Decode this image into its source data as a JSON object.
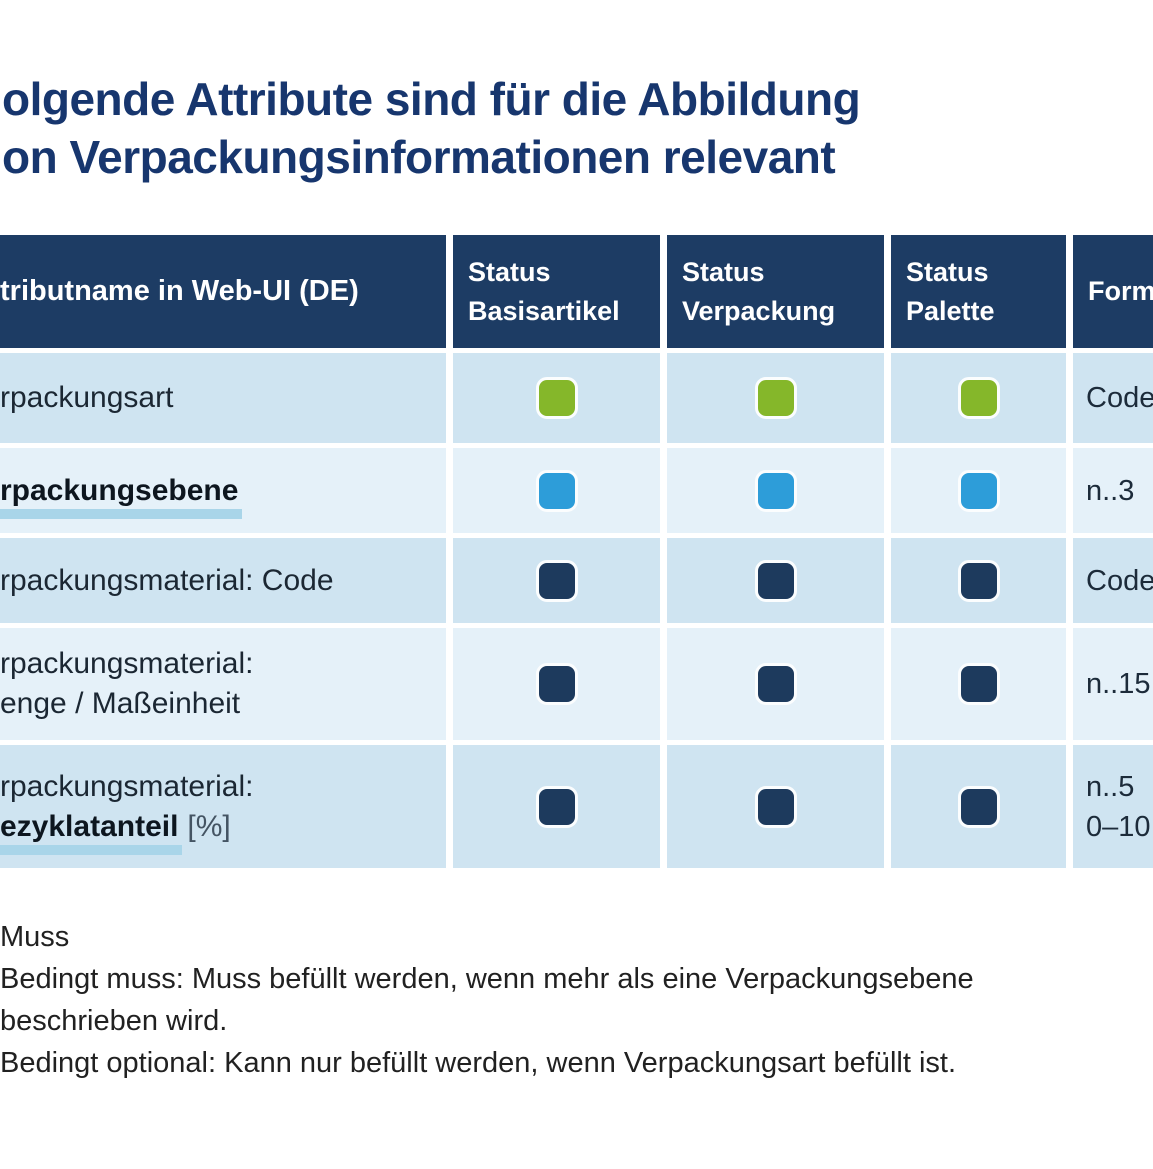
{
  "title": {
    "line1": "olgende Attribute sind für die Abbildung",
    "line2": "on Verpackungsinformationen relevant"
  },
  "table": {
    "headers": {
      "attribute_name": "tributname in Web-UI (DE)",
      "status_basisartikel": "Status Basisartikel",
      "status_verpackung": "Status Verpackung",
      "status_palette": "Status Palette",
      "format": "Form"
    },
    "rows": [
      {
        "name": "rpackungsart",
        "status": "muss",
        "format": "Code"
      },
      {
        "name": "rpackungsebene",
        "status": "bedingt-muss",
        "format": "n..3"
      },
      {
        "name": "rpackungsmaterial: Code",
        "status": "bedingt-optional",
        "format": "Code"
      },
      {
        "name_line1": "rpackungsmaterial:",
        "name_line2": "enge / Maßeinheit",
        "status": "bedingt-optional",
        "format": "n..15"
      },
      {
        "name_line1": "rpackungsmaterial:",
        "name_line2": "ezyklatanteil",
        "name_suffix": "[%]",
        "status": "bedingt-optional",
        "format_line1": "n..5",
        "format_line2": "0–10"
      }
    ]
  },
  "legend": {
    "muss": "Muss",
    "bedingt_muss_line1": "Bedingt muss: Muss befüllt werden, wenn mehr als eine Verpackungsebene",
    "bedingt_muss_line2": "beschrieben wird.",
    "bedingt_optional": "Bedingt optional: Kann nur befüllt werden, wenn Verpackungsart befüllt ist."
  },
  "colors": {
    "title": "#17366e",
    "header_bg": "#1d3c64",
    "row_light_blue": "#cfe4f1",
    "row_lighter_blue": "#e5f1f9",
    "muss": "#85b72a",
    "bedingt_muss": "#2d9dd9",
    "bedingt_optional": "#1d3a5d",
    "underline_highlight": "#a9d5e9"
  }
}
